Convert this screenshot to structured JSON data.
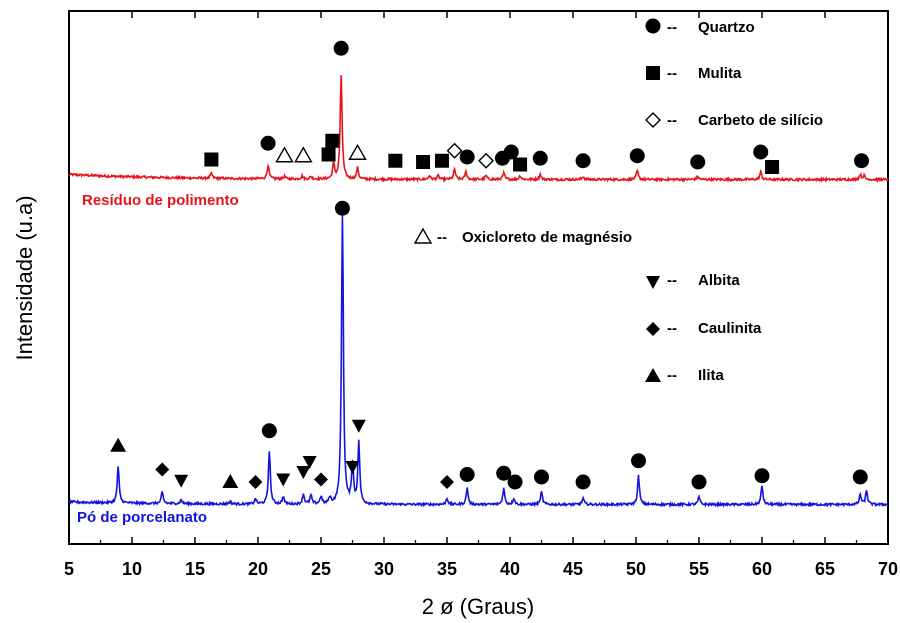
{
  "chart_data": {
    "type": "line",
    "title": "",
    "xlabel": "2 ø (Graus)",
    "ylabel": "Intensidade (u.a)",
    "xlim": [
      5,
      70
    ],
    "xticks": [
      5,
      10,
      15,
      20,
      25,
      30,
      35,
      40,
      45,
      50,
      55,
      60,
      65,
      70
    ],
    "y_ticks_shown": false,
    "grid": false,
    "series": [
      {
        "name": "Resíduo de polimento",
        "color": "#e8141c",
        "label_position": "left",
        "baseline": 0.1,
        "baseline_at_xmin": 0.3,
        "peaks": [
          {
            "x": 16.3,
            "h": 0.2
          },
          {
            "x": 20.8,
            "h": 0.55
          },
          {
            "x": 22.1,
            "h": 0.1
          },
          {
            "x": 23.5,
            "h": 0.12
          },
          {
            "x": 24.2,
            "h": 0.1
          },
          {
            "x": 26.0,
            "h": 0.6
          },
          {
            "x": 26.6,
            "h": 4.1
          },
          {
            "x": 27.9,
            "h": 0.45
          },
          {
            "x": 33.6,
            "h": 0.15
          },
          {
            "x": 34.3,
            "h": 0.15
          },
          {
            "x": 35.6,
            "h": 0.4
          },
          {
            "x": 36.5,
            "h": 0.3
          },
          {
            "x": 38.1,
            "h": 0.15
          },
          {
            "x": 39.5,
            "h": 0.25
          },
          {
            "x": 40.8,
            "h": 0.15
          },
          {
            "x": 42.4,
            "h": 0.2
          },
          {
            "x": 45.8,
            "h": 0.12
          },
          {
            "x": 50.1,
            "h": 0.35
          },
          {
            "x": 54.9,
            "h": 0.12
          },
          {
            "x": 59.9,
            "h": 0.3
          },
          {
            "x": 67.8,
            "h": 0.2
          },
          {
            "x": 68.1,
            "h": 0.15
          }
        ],
        "markers": [
          {
            "x": 16.3,
            "y": 0.9,
            "symbol": "square"
          },
          {
            "x": 20.8,
            "y": 1.55,
            "symbol": "circle"
          },
          {
            "x": 22.1,
            "y": 1.05,
            "symbol": "triangle-open"
          },
          {
            "x": 23.6,
            "y": 1.05,
            "symbol": "triangle-open"
          },
          {
            "x": 25.6,
            "y": 1.1,
            "symbol": "square"
          },
          {
            "x": 25.9,
            "y": 1.65,
            "symbol": "square"
          },
          {
            "x": 26.6,
            "y": 5.35,
            "symbol": "circle"
          },
          {
            "x": 27.9,
            "y": 1.15,
            "symbol": "triangle-open"
          },
          {
            "x": 30.9,
            "y": 0.85,
            "symbol": "square"
          },
          {
            "x": 33.1,
            "y": 0.8,
            "symbol": "square"
          },
          {
            "x": 34.6,
            "y": 0.85,
            "symbol": "square"
          },
          {
            "x": 35.6,
            "y": 1.25,
            "symbol": "diamond-open"
          },
          {
            "x": 36.6,
            "y": 1.0,
            "symbol": "circle"
          },
          {
            "x": 38.1,
            "y": 0.85,
            "symbol": "diamond-open"
          },
          {
            "x": 39.4,
            "y": 0.95,
            "symbol": "circle"
          },
          {
            "x": 40.1,
            "y": 1.2,
            "symbol": "circle"
          },
          {
            "x": 40.8,
            "y": 0.7,
            "symbol": "square"
          },
          {
            "x": 42.4,
            "y": 0.95,
            "symbol": "circle"
          },
          {
            "x": 45.8,
            "y": 0.85,
            "symbol": "circle"
          },
          {
            "x": 50.1,
            "y": 1.05,
            "symbol": "circle"
          },
          {
            "x": 54.9,
            "y": 0.8,
            "symbol": "circle"
          },
          {
            "x": 59.9,
            "y": 1.2,
            "symbol": "circle"
          },
          {
            "x": 60.8,
            "y": 0.6,
            "symbol": "square"
          },
          {
            "x": 67.9,
            "y": 0.85,
            "symbol": "circle"
          }
        ]
      },
      {
        "name": "Pó de porcelanato",
        "color": "#1414e0",
        "label_position": "left",
        "baseline": 0.1,
        "baseline_at_xmin": 0.2,
        "peaks": [
          {
            "x": 8.9,
            "h": 1.45
          },
          {
            "x": 12.4,
            "h": 0.45
          },
          {
            "x": 13.9,
            "h": 0.15
          },
          {
            "x": 17.8,
            "h": 0.1
          },
          {
            "x": 19.8,
            "h": 0.2
          },
          {
            "x": 20.9,
            "h": 2.15
          },
          {
            "x": 22.0,
            "h": 0.3
          },
          {
            "x": 23.6,
            "h": 0.4
          },
          {
            "x": 24.2,
            "h": 0.35
          },
          {
            "x": 25.0,
            "h": 0.3
          },
          {
            "x": 25.7,
            "h": 0.25
          },
          {
            "x": 26.7,
            "h": 11.6
          },
          {
            "x": 27.5,
            "h": 1.6
          },
          {
            "x": 28.0,
            "h": 2.45
          },
          {
            "x": 35.0,
            "h": 0.25
          },
          {
            "x": 36.6,
            "h": 0.65
          },
          {
            "x": 39.5,
            "h": 0.65
          },
          {
            "x": 40.3,
            "h": 0.25
          },
          {
            "x": 42.5,
            "h": 0.5
          },
          {
            "x": 45.8,
            "h": 0.25
          },
          {
            "x": 50.2,
            "h": 1.15
          },
          {
            "x": 55.0,
            "h": 0.3
          },
          {
            "x": 60.0,
            "h": 0.75
          },
          {
            "x": 67.8,
            "h": 0.4
          },
          {
            "x": 68.3,
            "h": 0.55
          }
        ],
        "markers": [
          {
            "x": 8.9,
            "y": 2.45,
            "symbol": "triangle"
          },
          {
            "x": 12.4,
            "y": 1.5,
            "symbol": "diamond"
          },
          {
            "x": 13.9,
            "y": 1.05,
            "symbol": "triangle-down"
          },
          {
            "x": 17.8,
            "y": 1.0,
            "symbol": "triangle"
          },
          {
            "x": 19.8,
            "y": 1.0,
            "symbol": "diamond"
          },
          {
            "x": 20.9,
            "y": 3.05,
            "symbol": "circle"
          },
          {
            "x": 22.0,
            "y": 1.1,
            "symbol": "triangle-down"
          },
          {
            "x": 23.6,
            "y": 1.4,
            "symbol": "triangle-down"
          },
          {
            "x": 24.1,
            "y": 1.8,
            "symbol": "triangle-down"
          },
          {
            "x": 25.0,
            "y": 1.1,
            "symbol": "diamond"
          },
          {
            "x": 26.7,
            "y": 11.95,
            "symbol": "circle"
          },
          {
            "x": 27.5,
            "y": 1.6,
            "symbol": "triangle-down"
          },
          {
            "x": 28.0,
            "y": 3.25,
            "symbol": "triangle-down"
          },
          {
            "x": 35.0,
            "y": 1.0,
            "symbol": "diamond"
          },
          {
            "x": 36.6,
            "y": 1.3,
            "symbol": "circle"
          },
          {
            "x": 39.5,
            "y": 1.35,
            "symbol": "circle"
          },
          {
            "x": 40.4,
            "y": 1.0,
            "symbol": "circle"
          },
          {
            "x": 42.5,
            "y": 1.2,
            "symbol": "circle"
          },
          {
            "x": 45.8,
            "y": 1.0,
            "symbol": "circle"
          },
          {
            "x": 50.2,
            "y": 1.85,
            "symbol": "circle"
          },
          {
            "x": 55.0,
            "y": 1.0,
            "symbol": "circle"
          },
          {
            "x": 60.0,
            "y": 1.25,
            "symbol": "circle"
          },
          {
            "x": 67.8,
            "y": 1.2,
            "symbol": "circle"
          }
        ]
      }
    ],
    "legend": [
      {
        "symbol": "circle",
        "label": "Quartzo"
      },
      {
        "symbol": "square",
        "label": "Mulita"
      },
      {
        "symbol": "diamond-open",
        "label": "Carbeto de silício"
      },
      {
        "symbol": "triangle-open",
        "label": "Oxicloreto de magnésio"
      },
      {
        "symbol": "triangle-down",
        "label": "Albita"
      },
      {
        "symbol": "diamond",
        "label": "Caulinita"
      },
      {
        "symbol": "triangle",
        "label": "Ilita"
      }
    ]
  }
}
